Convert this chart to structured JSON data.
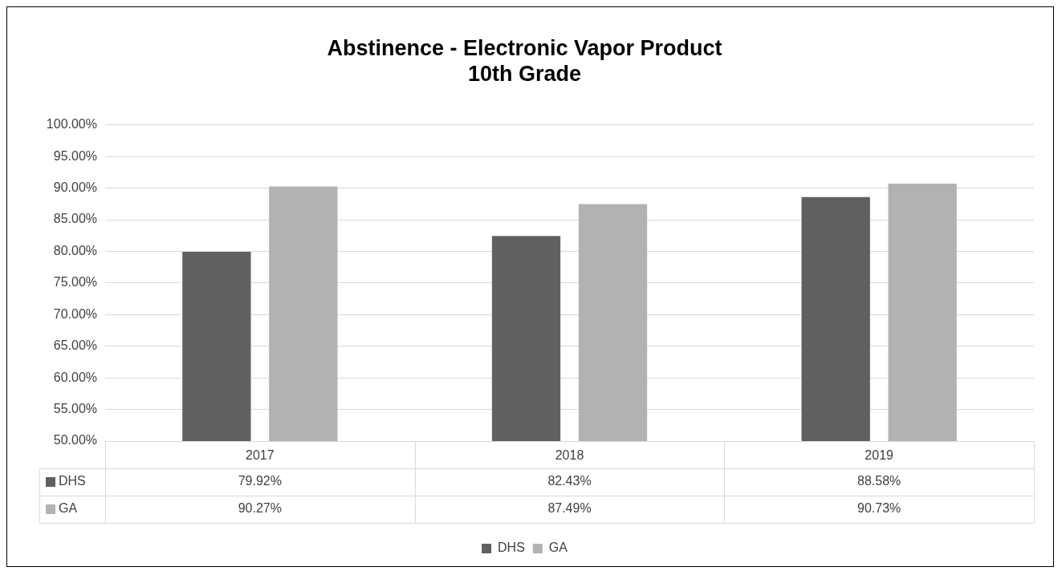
{
  "chart_data": {
    "type": "bar",
    "title": "Abstinence - Electronic Vapor Product\n10th Grade",
    "categories": [
      "2017",
      "2018",
      "2019"
    ],
    "series": [
      {
        "name": "DHS",
        "color": "#606060",
        "values": [
          79.92,
          82.43,
          88.58
        ],
        "value_labels": [
          "79.92%",
          "82.43%",
          "88.58%"
        ]
      },
      {
        "name": "GA",
        "color": "#b2b2b2",
        "values": [
          90.27,
          87.49,
          90.73
        ],
        "value_labels": [
          "90.27%",
          "87.49%",
          "90.73%"
        ]
      }
    ],
    "ylim": [
      50,
      100
    ],
    "yticks": [
      {
        "value": 50,
        "label": "50.00%"
      },
      {
        "value": 55,
        "label": "55.00%"
      },
      {
        "value": 60,
        "label": "60.00%"
      },
      {
        "value": 65,
        "label": "65.00%"
      },
      {
        "value": 70,
        "label": "70.00%"
      },
      {
        "value": 75,
        "label": "75.00%"
      },
      {
        "value": 80,
        "label": "80.00%"
      },
      {
        "value": 85,
        "label": "85.00%"
      },
      {
        "value": 90,
        "label": "90.00%"
      },
      {
        "value": 95,
        "label": "95.00%"
      },
      {
        "value": 100,
        "label": "100.00%"
      }
    ],
    "grid": "y",
    "legend": "bottom"
  }
}
